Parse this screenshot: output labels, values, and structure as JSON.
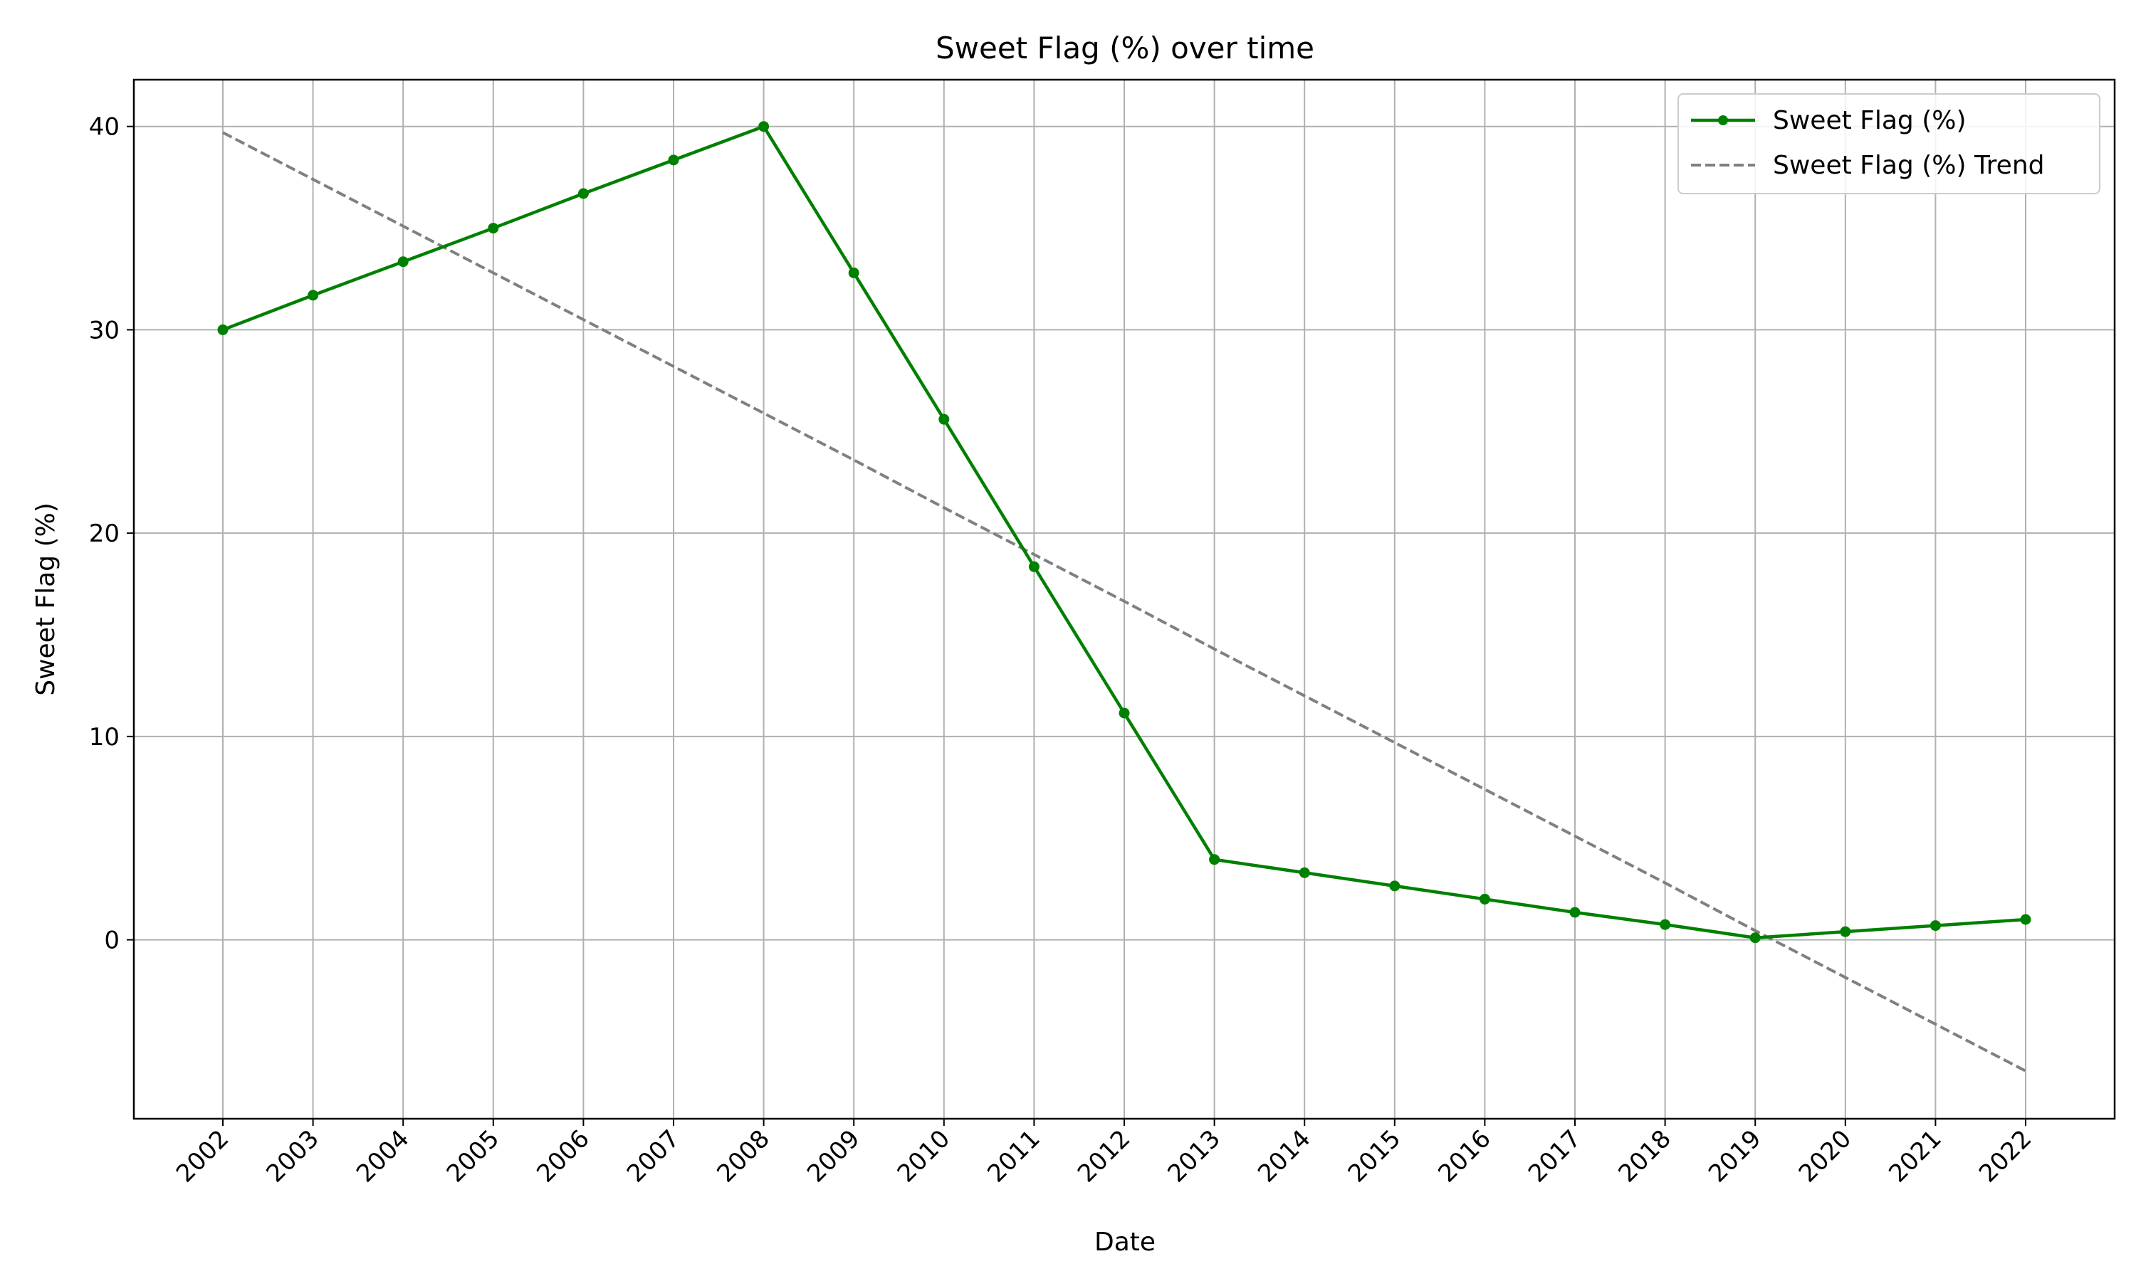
{
  "chart_data": {
    "type": "line",
    "title": "Sweet Flag (%) over time",
    "xlabel": "Date",
    "ylabel": "Sweet Flag (%)",
    "x": [
      "2002",
      "2003",
      "2004",
      "2005",
      "2006",
      "2007",
      "2008",
      "2009",
      "2010",
      "2011",
      "2012",
      "2013",
      "2014",
      "2015",
      "2016",
      "2017",
      "2018",
      "2019",
      "2020",
      "2021",
      "2022"
    ],
    "ylim": [
      -8.8,
      42.3
    ],
    "yticks": [
      0,
      10,
      20,
      30,
      40
    ],
    "grid": true,
    "legend_position": "top-right",
    "series": [
      {
        "name": "Sweet Flag (%)",
        "style": "solid-with-markers",
        "color": "#008000",
        "values": [
          30.0,
          31.7,
          33.35,
          35.0,
          36.7,
          38.35,
          40.0,
          32.8,
          25.6,
          18.35,
          11.15,
          3.95,
          3.3,
          2.65,
          2.0,
          1.35,
          0.75,
          0.1,
          0.4,
          0.7,
          1.0
        ]
      },
      {
        "name": "Sweet Flag (%) Trend",
        "style": "dashed",
        "color": "#808080",
        "values": [
          39.7,
          37.4,
          35.1,
          32.8,
          30.5,
          28.2,
          25.9,
          23.6,
          21.25,
          18.95,
          16.65,
          14.3,
          12.0,
          9.7,
          7.4,
          5.1,
          2.8,
          0.45,
          -1.85,
          -4.15,
          -6.45
        ]
      }
    ]
  }
}
